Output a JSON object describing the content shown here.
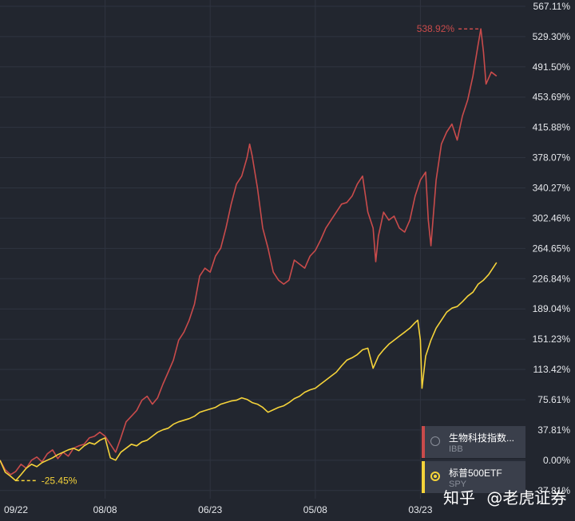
{
  "chart_data": {
    "type": "line",
    "ylim": [
      -48,
      575
    ],
    "y_ticks": [
      "567.11%",
      "529.30%",
      "491.50%",
      "453.69%",
      "415.88%",
      "378.07%",
      "340.27%",
      "302.46%",
      "264.65%",
      "226.84%",
      "189.04%",
      "151.23%",
      "113.42%",
      "75.61%",
      "37.81%",
      "0.00%",
      "-37.81%"
    ],
    "x_ticks": [
      "09/22",
      "08/08",
      "06/23",
      "05/08",
      "03/23"
    ],
    "x_tick_fractions": [
      0.0,
      0.2,
      0.4,
      0.6,
      0.8
    ],
    "series": [
      {
        "name": "生物科技指数...",
        "ticker": "IBB",
        "color": "#c94b4b",
        "points": [
          [
            0.0,
            0
          ],
          [
            0.01,
            -12
          ],
          [
            0.02,
            -18
          ],
          [
            0.03,
            -14
          ],
          [
            0.04,
            -5
          ],
          [
            0.05,
            -10
          ],
          [
            0.06,
            0
          ],
          [
            0.07,
            4
          ],
          [
            0.08,
            -2
          ],
          [
            0.09,
            8
          ],
          [
            0.1,
            13
          ],
          [
            0.11,
            2
          ],
          [
            0.12,
            10
          ],
          [
            0.13,
            5
          ],
          [
            0.14,
            15
          ],
          [
            0.15,
            18
          ],
          [
            0.16,
            20
          ],
          [
            0.17,
            28
          ],
          [
            0.18,
            30
          ],
          [
            0.19,
            35
          ],
          [
            0.2,
            30
          ],
          [
            0.21,
            20
          ],
          [
            0.22,
            10
          ],
          [
            0.23,
            28
          ],
          [
            0.24,
            48
          ],
          [
            0.25,
            55
          ],
          [
            0.26,
            62
          ],
          [
            0.27,
            75
          ],
          [
            0.28,
            80
          ],
          [
            0.29,
            70
          ],
          [
            0.3,
            78
          ],
          [
            0.31,
            95
          ],
          [
            0.32,
            110
          ],
          [
            0.33,
            125
          ],
          [
            0.34,
            150
          ],
          [
            0.35,
            160
          ],
          [
            0.36,
            175
          ],
          [
            0.37,
            195
          ],
          [
            0.38,
            230
          ],
          [
            0.39,
            240
          ],
          [
            0.4,
            235
          ],
          [
            0.41,
            255
          ],
          [
            0.42,
            265
          ],
          [
            0.43,
            290
          ],
          [
            0.44,
            320
          ],
          [
            0.45,
            345
          ],
          [
            0.46,
            355
          ],
          [
            0.47,
            378
          ],
          [
            0.475,
            395
          ],
          [
            0.48,
            380
          ],
          [
            0.49,
            340
          ],
          [
            0.5,
            290
          ],
          [
            0.51,
            265
          ],
          [
            0.52,
            235
          ],
          [
            0.53,
            225
          ],
          [
            0.54,
            220
          ],
          [
            0.55,
            225
          ],
          [
            0.56,
            250
          ],
          [
            0.57,
            245
          ],
          [
            0.58,
            240
          ],
          [
            0.59,
            255
          ],
          [
            0.6,
            262
          ],
          [
            0.61,
            275
          ],
          [
            0.62,
            290
          ],
          [
            0.63,
            300
          ],
          [
            0.64,
            310
          ],
          [
            0.65,
            320
          ],
          [
            0.66,
            322
          ],
          [
            0.67,
            330
          ],
          [
            0.68,
            345
          ],
          [
            0.69,
            355
          ],
          [
            0.7,
            310
          ],
          [
            0.71,
            290
          ],
          [
            0.715,
            248
          ],
          [
            0.72,
            280
          ],
          [
            0.73,
            310
          ],
          [
            0.74,
            300
          ],
          [
            0.75,
            305
          ],
          [
            0.76,
            290
          ],
          [
            0.77,
            285
          ],
          [
            0.78,
            300
          ],
          [
            0.79,
            330
          ],
          [
            0.8,
            350
          ],
          [
            0.81,
            360
          ],
          [
            0.815,
            300
          ],
          [
            0.82,
            268
          ],
          [
            0.83,
            350
          ],
          [
            0.84,
            395
          ],
          [
            0.85,
            410
          ],
          [
            0.86,
            420
          ],
          [
            0.87,
            400
          ],
          [
            0.88,
            430
          ],
          [
            0.89,
            450
          ],
          [
            0.9,
            480
          ],
          [
            0.91,
            520
          ],
          [
            0.915,
            538.92
          ],
          [
            0.92,
            510
          ],
          [
            0.925,
            470
          ],
          [
            0.935,
            485
          ],
          [
            0.945,
            480
          ]
        ]
      },
      {
        "name": "标普500ETF",
        "ticker": "SPY",
        "color": "#f5d33a",
        "points": [
          [
            0.0,
            0
          ],
          [
            0.01,
            -15
          ],
          [
            0.02,
            -20
          ],
          [
            0.03,
            -25.45
          ],
          [
            0.04,
            -18
          ],
          [
            0.05,
            -10
          ],
          [
            0.06,
            -5
          ],
          [
            0.07,
            -8
          ],
          [
            0.08,
            -3
          ],
          [
            0.09,
            0
          ],
          [
            0.1,
            3
          ],
          [
            0.11,
            7
          ],
          [
            0.12,
            10
          ],
          [
            0.13,
            13
          ],
          [
            0.14,
            15
          ],
          [
            0.15,
            12
          ],
          [
            0.16,
            18
          ],
          [
            0.17,
            22
          ],
          [
            0.18,
            20
          ],
          [
            0.19,
            25
          ],
          [
            0.2,
            28
          ],
          [
            0.21,
            3
          ],
          [
            0.22,
            0
          ],
          [
            0.23,
            10
          ],
          [
            0.24,
            15
          ],
          [
            0.25,
            20
          ],
          [
            0.26,
            18
          ],
          [
            0.27,
            23
          ],
          [
            0.28,
            25
          ],
          [
            0.29,
            30
          ],
          [
            0.3,
            35
          ],
          [
            0.31,
            38
          ],
          [
            0.32,
            40
          ],
          [
            0.33,
            45
          ],
          [
            0.34,
            48
          ],
          [
            0.35,
            50
          ],
          [
            0.36,
            52
          ],
          [
            0.37,
            55
          ],
          [
            0.38,
            60
          ],
          [
            0.39,
            62
          ],
          [
            0.4,
            64
          ],
          [
            0.41,
            66
          ],
          [
            0.42,
            70
          ],
          [
            0.43,
            72
          ],
          [
            0.44,
            74
          ],
          [
            0.45,
            75
          ],
          [
            0.46,
            78
          ],
          [
            0.47,
            76
          ],
          [
            0.48,
            72
          ],
          [
            0.49,
            70
          ],
          [
            0.5,
            66
          ],
          [
            0.51,
            60
          ],
          [
            0.52,
            63
          ],
          [
            0.53,
            66
          ],
          [
            0.54,
            68
          ],
          [
            0.55,
            72
          ],
          [
            0.56,
            77
          ],
          [
            0.57,
            80
          ],
          [
            0.58,
            85
          ],
          [
            0.59,
            88
          ],
          [
            0.6,
            90
          ],
          [
            0.61,
            95
          ],
          [
            0.62,
            100
          ],
          [
            0.63,
            105
          ],
          [
            0.64,
            110
          ],
          [
            0.65,
            118
          ],
          [
            0.66,
            125
          ],
          [
            0.67,
            128
          ],
          [
            0.68,
            132
          ],
          [
            0.69,
            138
          ],
          [
            0.7,
            140
          ],
          [
            0.71,
            115
          ],
          [
            0.72,
            130
          ],
          [
            0.73,
            138
          ],
          [
            0.74,
            145
          ],
          [
            0.75,
            150
          ],
          [
            0.76,
            155
          ],
          [
            0.77,
            160
          ],
          [
            0.78,
            165
          ],
          [
            0.79,
            172
          ],
          [
            0.795,
            175
          ],
          [
            0.8,
            150
          ],
          [
            0.803,
            90
          ],
          [
            0.81,
            130
          ],
          [
            0.82,
            150
          ],
          [
            0.83,
            165
          ],
          [
            0.84,
            175
          ],
          [
            0.85,
            185
          ],
          [
            0.86,
            190
          ],
          [
            0.87,
            192
          ],
          [
            0.88,
            198
          ],
          [
            0.89,
            205
          ],
          [
            0.9,
            210
          ],
          [
            0.91,
            220
          ],
          [
            0.92,
            225
          ],
          [
            0.93,
            232
          ],
          [
            0.945,
            247
          ]
        ]
      }
    ],
    "annotations": [
      {
        "label": "538.92%",
        "series": 0,
        "x": 0.915,
        "value": 538.92,
        "side": "left"
      },
      {
        "label": "-25.45%",
        "series": 1,
        "x": 0.03,
        "value": -25.45,
        "side": "right"
      }
    ],
    "grid": true,
    "legend_position": "bottom-right"
  },
  "watermark": {
    "zhihu": "知乎",
    "at": "@",
    "brand": "老虎证券"
  }
}
